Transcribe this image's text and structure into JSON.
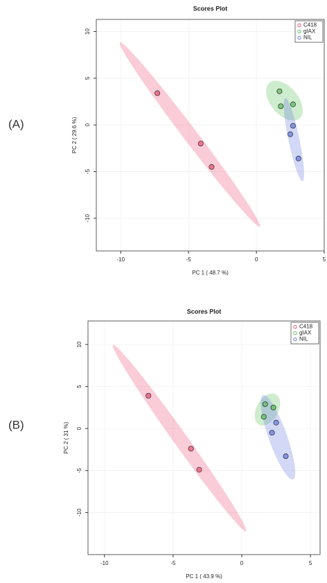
{
  "panels": [
    "(A)",
    "(B)"
  ],
  "chart_data": [
    {
      "type": "scatter",
      "title": "Scores Plot",
      "x_label": "PC 1 ( 48.7 %)",
      "y_label": "PC 2 ( 29.6 %)",
      "xlim": [
        -11.8,
        5.0
      ],
      "ylim": [
        -13.5,
        11.3
      ],
      "xticks": [
        -10,
        -5,
        0,
        5
      ],
      "yticks": [
        10,
        5,
        0,
        -5,
        -10
      ],
      "grid": true,
      "legend": "top-right",
      "series": [
        {
          "name": "C418",
          "color": "#f0557a",
          "x": [
            -7.3,
            -4.1,
            -3.3
          ],
          "y": [
            3.4,
            -2.0,
            -4.5
          ]
        },
        {
          "name": "gIAX",
          "color": "#5cc05c",
          "x": [
            1.7,
            1.8,
            2.7
          ],
          "y": [
            3.6,
            2.0,
            2.2
          ]
        },
        {
          "name": "NIL",
          "color": "#6a7fe0",
          "x": [
            2.7,
            2.5,
            3.1
          ],
          "y": [
            -0.1,
            -1.0,
            -3.6
          ]
        }
      ]
    },
    {
      "type": "scatter",
      "title": "Scores Plot",
      "x_label": "PC 1 ( 43.9 %)",
      "y_label": "PC 2 ( 31 %)",
      "xlim": [
        -11.2,
        5.7
      ],
      "ylim": [
        -15.0,
        12.8
      ],
      "xticks": [
        -10,
        -5,
        0,
        5
      ],
      "yticks": [
        10,
        5,
        0,
        -5,
        -10
      ],
      "grid": true,
      "legend": "top-right",
      "series": [
        {
          "name": "C418",
          "color": "#f0557a",
          "x": [
            -6.8,
            -3.7,
            -3.1
          ],
          "y": [
            3.9,
            -2.4,
            -4.9
          ]
        },
        {
          "name": "gIAX",
          "color": "#5cc05c",
          "x": [
            1.7,
            2.3,
            1.6
          ],
          "y": [
            2.9,
            2.5,
            1.4
          ]
        },
        {
          "name": "NIL",
          "color": "#6a7fe0",
          "x": [
            2.5,
            2.2,
            3.2
          ],
          "y": [
            0.7,
            -0.5,
            -3.3
          ]
        }
      ]
    }
  ]
}
